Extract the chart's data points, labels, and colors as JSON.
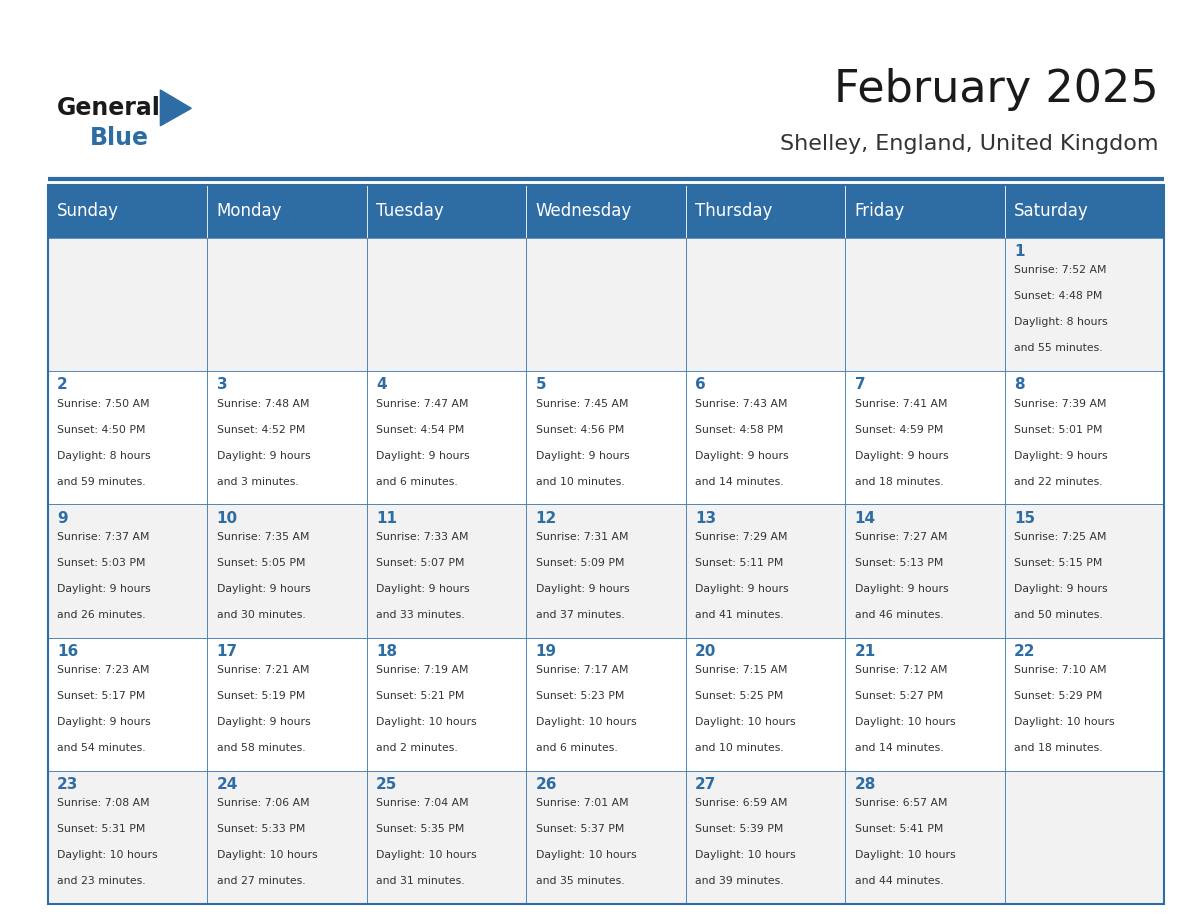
{
  "title": "February 2025",
  "subtitle": "Shelley, England, United Kingdom",
  "days_of_week": [
    "Sunday",
    "Monday",
    "Tuesday",
    "Wednesday",
    "Thursday",
    "Friday",
    "Saturday"
  ],
  "header_bg": "#2E6DA4",
  "header_text": "#FFFFFF",
  "cell_bg": "#F2F2F2",
  "cell_bg_alt": "#FFFFFF",
  "border_color": "#2E6DA4",
  "day_number_color": "#2E6DA4",
  "text_color": "#333333",
  "title_color": "#1a1a1a",
  "subtitle_color": "#333333",
  "logo_general_color": "#1a1a1a",
  "logo_blue_color": "#2E6DA4",
  "weeks": [
    [
      null,
      null,
      null,
      null,
      null,
      null,
      1
    ],
    [
      2,
      3,
      4,
      5,
      6,
      7,
      8
    ],
    [
      9,
      10,
      11,
      12,
      13,
      14,
      15
    ],
    [
      16,
      17,
      18,
      19,
      20,
      21,
      22
    ],
    [
      23,
      24,
      25,
      26,
      27,
      28,
      null
    ]
  ],
  "day_data": {
    "1": {
      "sunrise": "7:52 AM",
      "sunset": "4:48 PM",
      "daylight": "8 hours and 55 minutes."
    },
    "2": {
      "sunrise": "7:50 AM",
      "sunset": "4:50 PM",
      "daylight": "8 hours and 59 minutes."
    },
    "3": {
      "sunrise": "7:48 AM",
      "sunset": "4:52 PM",
      "daylight": "9 hours and 3 minutes."
    },
    "4": {
      "sunrise": "7:47 AM",
      "sunset": "4:54 PM",
      "daylight": "9 hours and 6 minutes."
    },
    "5": {
      "sunrise": "7:45 AM",
      "sunset": "4:56 PM",
      "daylight": "9 hours and 10 minutes."
    },
    "6": {
      "sunrise": "7:43 AM",
      "sunset": "4:58 PM",
      "daylight": "9 hours and 14 minutes."
    },
    "7": {
      "sunrise": "7:41 AM",
      "sunset": "4:59 PM",
      "daylight": "9 hours and 18 minutes."
    },
    "8": {
      "sunrise": "7:39 AM",
      "sunset": "5:01 PM",
      "daylight": "9 hours and 22 minutes."
    },
    "9": {
      "sunrise": "7:37 AM",
      "sunset": "5:03 PM",
      "daylight": "9 hours and 26 minutes."
    },
    "10": {
      "sunrise": "7:35 AM",
      "sunset": "5:05 PM",
      "daylight": "9 hours and 30 minutes."
    },
    "11": {
      "sunrise": "7:33 AM",
      "sunset": "5:07 PM",
      "daylight": "9 hours and 33 minutes."
    },
    "12": {
      "sunrise": "7:31 AM",
      "sunset": "5:09 PM",
      "daylight": "9 hours and 37 minutes."
    },
    "13": {
      "sunrise": "7:29 AM",
      "sunset": "5:11 PM",
      "daylight": "9 hours and 41 minutes."
    },
    "14": {
      "sunrise": "7:27 AM",
      "sunset": "5:13 PM",
      "daylight": "9 hours and 46 minutes."
    },
    "15": {
      "sunrise": "7:25 AM",
      "sunset": "5:15 PM",
      "daylight": "9 hours and 50 minutes."
    },
    "16": {
      "sunrise": "7:23 AM",
      "sunset": "5:17 PM",
      "daylight": "9 hours and 54 minutes."
    },
    "17": {
      "sunrise": "7:21 AM",
      "sunset": "5:19 PM",
      "daylight": "9 hours and 58 minutes."
    },
    "18": {
      "sunrise": "7:19 AM",
      "sunset": "5:21 PM",
      "daylight": "10 hours and 2 minutes."
    },
    "19": {
      "sunrise": "7:17 AM",
      "sunset": "5:23 PM",
      "daylight": "10 hours and 6 minutes."
    },
    "20": {
      "sunrise": "7:15 AM",
      "sunset": "5:25 PM",
      "daylight": "10 hours and 10 minutes."
    },
    "21": {
      "sunrise": "7:12 AM",
      "sunset": "5:27 PM",
      "daylight": "10 hours and 14 minutes."
    },
    "22": {
      "sunrise": "7:10 AM",
      "sunset": "5:29 PM",
      "daylight": "10 hours and 18 minutes."
    },
    "23": {
      "sunrise": "7:08 AM",
      "sunset": "5:31 PM",
      "daylight": "10 hours and 23 minutes."
    },
    "24": {
      "sunrise": "7:06 AM",
      "sunset": "5:33 PM",
      "daylight": "10 hours and 27 minutes."
    },
    "25": {
      "sunrise": "7:04 AM",
      "sunset": "5:35 PM",
      "daylight": "10 hours and 31 minutes."
    },
    "26": {
      "sunrise": "7:01 AM",
      "sunset": "5:37 PM",
      "daylight": "10 hours and 35 minutes."
    },
    "27": {
      "sunrise": "6:59 AM",
      "sunset": "5:39 PM",
      "daylight": "10 hours and 39 minutes."
    },
    "28": {
      "sunrise": "6:57 AM",
      "sunset": "5:41 PM",
      "daylight": "10 hours and 44 minutes."
    }
  }
}
